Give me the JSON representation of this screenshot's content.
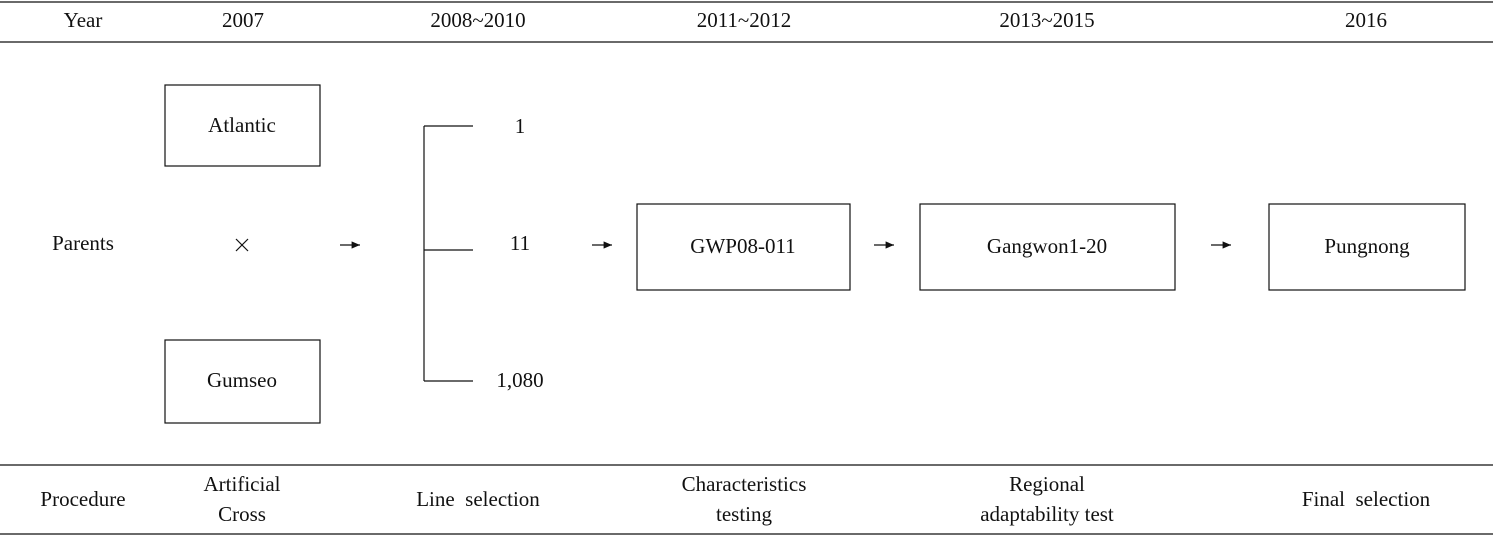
{
  "header": {
    "label": "Year",
    "years": [
      "2007",
      "2008~2010",
      "2011~2012",
      "2013~2015",
      "2016"
    ]
  },
  "row_label": "Parents",
  "parents": [
    "Atlantic",
    "Gumseo"
  ],
  "lines": [
    "1",
    "11",
    "1,080"
  ],
  "stages": [
    "GWP08-011",
    "Gangwon1-20",
    "Pungnong"
  ],
  "procedure": {
    "label": "Procedure",
    "items": [
      [
        "Artificial",
        "Cross"
      ],
      [
        "Line  selection"
      ],
      [
        "Characteristics",
        "testing"
      ],
      [
        "Regional",
        "adaptability test"
      ],
      [
        "Final  selection"
      ]
    ]
  }
}
